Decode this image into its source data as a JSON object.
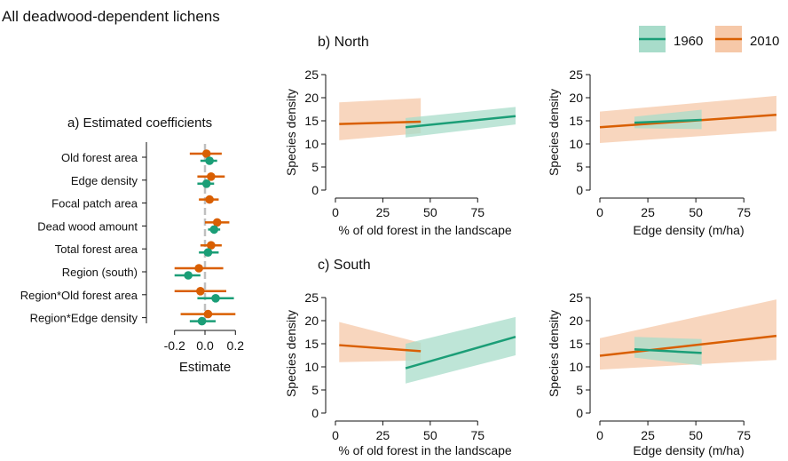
{
  "figure": {
    "title": "All deadwood-dependent lichens",
    "legend": [
      {
        "label": "1960",
        "color": "#1b9e77",
        "band": "#a8dcca"
      },
      {
        "label": "2010",
        "color": "#d95f02",
        "band": "#f6c8a8"
      }
    ]
  },
  "chart_data": [
    {
      "id": "a",
      "type": "dot-whisker",
      "title": "a) Estimated coefficients",
      "xlabel": "Estimate",
      "xlim": [
        -0.28,
        0.28
      ],
      "xticks": [
        -0.2,
        0,
        0.2
      ],
      "xtick_labels": [
        "-0.2",
        "0.0",
        "0.2"
      ],
      "categories": [
        "Old forest area",
        "Edge density",
        "Focal patch area",
        "Dead wood amount",
        "Total forest area",
        "Region (south)",
        "Region*Old forest area",
        "Region*Edge density"
      ],
      "series": [
        {
          "name": "2010",
          "color": "#d95f02",
          "estimate": [
            0.01,
            0.04,
            0.03,
            0.08,
            0.04,
            -0.04,
            -0.03,
            0.02
          ],
          "lower": [
            -0.1,
            -0.05,
            -0.04,
            0.0,
            -0.03,
            -0.2,
            -0.2,
            -0.16
          ],
          "upper": [
            0.11,
            0.13,
            0.09,
            0.16,
            0.11,
            0.12,
            0.14,
            0.2
          ]
        },
        {
          "name": "1960",
          "color": "#1b9e77",
          "estimate": [
            0.03,
            0.01,
            null,
            0.06,
            0.02,
            -0.11,
            0.07,
            -0.02
          ],
          "lower": [
            -0.03,
            -0.05,
            null,
            0.02,
            -0.04,
            -0.2,
            -0.05,
            -0.1
          ],
          "upper": [
            0.08,
            0.06,
            null,
            0.1,
            0.09,
            -0.03,
            0.19,
            0.07
          ]
        }
      ]
    },
    {
      "id": "b-left",
      "group_title": "b) North",
      "type": "line",
      "xlabel": "% of old forest in the landscape",
      "ylabel": "Species density",
      "xlim": [
        0,
        95
      ],
      "ylim": [
        0,
        25
      ],
      "xticks": [
        0,
        25,
        50,
        75
      ],
      "yticks": [
        0,
        5,
        10,
        15,
        20,
        25
      ],
      "series": [
        {
          "name": "2010",
          "color": "#d95f02",
          "x": [
            2,
            45
          ],
          "y": [
            14.3,
            14.8
          ],
          "lower": [
            10.8,
            12.3
          ],
          "upper": [
            19.0,
            19.9
          ]
        },
        {
          "name": "1960",
          "color": "#1b9e77",
          "x": [
            37,
            95
          ],
          "y": [
            13.6,
            16.0
          ],
          "lower": [
            11.4,
            14.2
          ],
          "upper": [
            15.6,
            18.0
          ]
        }
      ]
    },
    {
      "id": "b-right",
      "type": "line",
      "xlabel": "Edge density (m/ha)",
      "ylabel": "Species density",
      "xlim": [
        0,
        92
      ],
      "ylim": [
        0,
        25
      ],
      "xticks": [
        0,
        25,
        50,
        75
      ],
      "yticks": [
        0,
        5,
        10,
        15,
        20,
        25
      ],
      "series": [
        {
          "name": "2010",
          "color": "#d95f02",
          "x": [
            0,
            92
          ],
          "y": [
            13.6,
            16.3
          ],
          "lower": [
            10.2,
            12.8
          ],
          "upper": [
            17.0,
            20.4
          ]
        },
        {
          "name": "1960",
          "color": "#1b9e77",
          "x": [
            18,
            53
          ],
          "y": [
            14.6,
            15.2
          ],
          "lower": [
            13.4,
            13.2
          ],
          "upper": [
            15.9,
            17.4
          ]
        }
      ]
    },
    {
      "id": "c-left",
      "group_title": "c) South",
      "type": "line",
      "xlabel": "% of old forest in the landscape",
      "ylabel": "Species density",
      "xlim": [
        0,
        95
      ],
      "ylim": [
        0,
        25
      ],
      "xticks": [
        0,
        25,
        50,
        75
      ],
      "yticks": [
        0,
        5,
        10,
        15,
        20,
        25
      ],
      "series": [
        {
          "name": "2010",
          "color": "#d95f02",
          "x": [
            2,
            45
          ],
          "y": [
            14.7,
            13.4
          ],
          "lower": [
            11.0,
            11.4
          ],
          "upper": [
            19.7,
            15.2
          ]
        },
        {
          "name": "1960",
          "color": "#1b9e77",
          "x": [
            37,
            95
          ],
          "y": [
            9.7,
            16.5
          ],
          "lower": [
            6.4,
            12.5
          ],
          "upper": [
            15.0,
            20.8
          ]
        }
      ]
    },
    {
      "id": "c-right",
      "type": "line",
      "xlabel": "Edge density (m/ha)",
      "ylabel": "Species density",
      "xlim": [
        0,
        92
      ],
      "ylim": [
        0,
        25
      ],
      "xticks": [
        0,
        25,
        50,
        75
      ],
      "yticks": [
        0,
        5,
        10,
        15,
        20,
        25
      ],
      "series": [
        {
          "name": "2010",
          "color": "#d95f02",
          "x": [
            0,
            92
          ],
          "y": [
            12.4,
            16.7
          ],
          "lower": [
            9.4,
            11.5
          ],
          "upper": [
            16.2,
            24.6
          ]
        },
        {
          "name": "1960",
          "color": "#1b9e77",
          "x": [
            18,
            53
          ],
          "y": [
            13.8,
            13.0
          ],
          "lower": [
            12.0,
            10.3
          ],
          "upper": [
            16.5,
            16.0
          ]
        }
      ]
    }
  ]
}
